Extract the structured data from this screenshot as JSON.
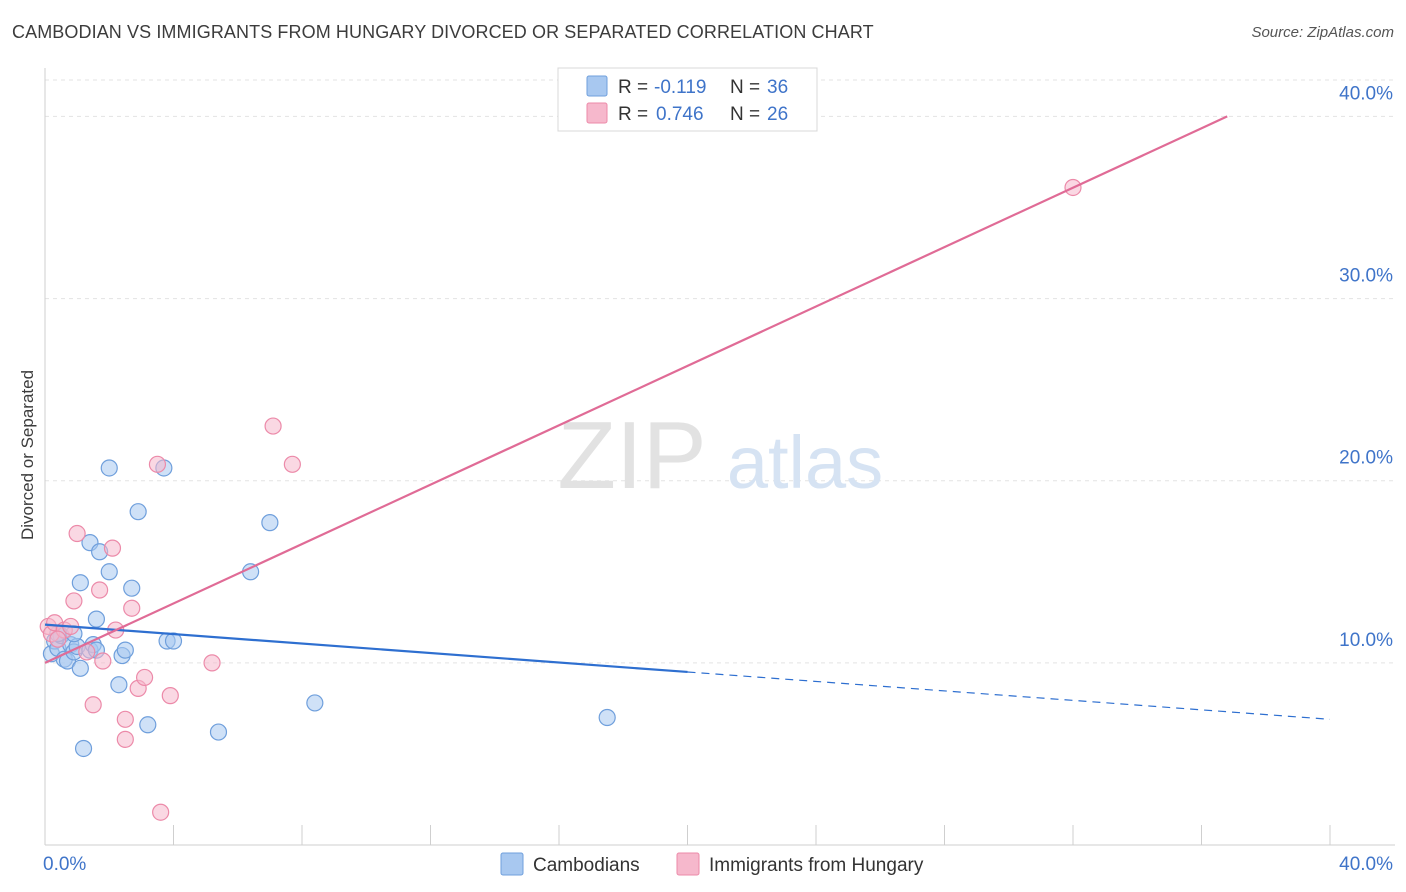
{
  "chart_data": {
    "type": "scatter",
    "title": "CAMBODIAN VS IMMIGRANTS FROM HUNGARY DIVORCED OR SEPARATED CORRELATION CHART",
    "source": "Source: ZipAtlas.com",
    "ylabel": "Divorced or Separated",
    "xlabel": "",
    "xlim": [
      0,
      40
    ],
    "ylim": [
      0,
      42
    ],
    "x_tick_labels": [
      "0.0%",
      "40.0%"
    ],
    "y_ticks": [
      10,
      20,
      30,
      40
    ],
    "y_tick_labels": [
      "10.0%",
      "20.0%",
      "30.0%",
      "40.0%"
    ],
    "watermark": {
      "zip": "ZIP",
      "atlas": "atlas"
    },
    "legend_top": [
      {
        "r_label": "R =",
        "r_value": "-0.119",
        "n_label": "N =",
        "n_value": "36"
      },
      {
        "r_label": "R =",
        "r_value": "0.746",
        "n_label": "N =",
        "n_value": "26"
      }
    ],
    "legend_bottom": [
      "Cambodians",
      "Immigrants from Hungary"
    ],
    "colors": {
      "blue_fill": "#a8c8f0",
      "blue_stroke": "#6f9fdc",
      "blue_line": "#2e6fd0",
      "pink_fill": "#f6b8cc",
      "pink_stroke": "#ec8aa9",
      "pink_line": "#e06b96",
      "tick_label": "#3f74c9",
      "grid": "#e3e3e3"
    },
    "series": [
      {
        "name": "Cambodians",
        "points": [
          [
            0.2,
            10.5
          ],
          [
            0.3,
            11.2
          ],
          [
            0.4,
            10.8
          ],
          [
            0.5,
            11.5
          ],
          [
            0.6,
            10.2
          ],
          [
            0.7,
            10.1
          ],
          [
            0.8,
            11.0
          ],
          [
            0.9,
            10.6
          ],
          [
            1.0,
            10.9
          ],
          [
            1.1,
            9.7
          ],
          [
            1.1,
            14.4
          ],
          [
            1.2,
            5.3
          ],
          [
            1.4,
            10.7
          ],
          [
            1.4,
            16.6
          ],
          [
            1.5,
            11.0
          ],
          [
            1.6,
            12.4
          ],
          [
            1.6,
            10.7
          ],
          [
            1.7,
            16.1
          ],
          [
            2.0,
            15.0
          ],
          [
            2.0,
            20.7
          ],
          [
            2.3,
            8.8
          ],
          [
            2.4,
            10.4
          ],
          [
            2.5,
            10.7
          ],
          [
            2.7,
            14.1
          ],
          [
            2.9,
            18.3
          ],
          [
            3.2,
            6.6
          ],
          [
            3.7,
            20.7
          ],
          [
            3.8,
            11.2
          ],
          [
            4.0,
            11.2
          ],
          [
            5.4,
            6.2
          ],
          [
            6.4,
            15.0
          ],
          [
            7.0,
            17.7
          ],
          [
            8.4,
            7.8
          ],
          [
            17.5,
            7.0
          ],
          [
            0.4,
            11.6
          ],
          [
            0.9,
            11.6
          ]
        ],
        "trend": {
          "x": [
            0,
            20
          ],
          "y": [
            12.1,
            9.5
          ],
          "dash_x": [
            20,
            40
          ],
          "dash_y": [
            9.5,
            6.9
          ]
        }
      },
      {
        "name": "Immigrants from Hungary",
        "points": [
          [
            0.1,
            12.0
          ],
          [
            0.2,
            11.6
          ],
          [
            0.3,
            12.2
          ],
          [
            0.6,
            11.8
          ],
          [
            0.8,
            12.0
          ],
          [
            0.9,
            13.4
          ],
          [
            1.0,
            17.1
          ],
          [
            1.3,
            10.6
          ],
          [
            1.5,
            7.7
          ],
          [
            1.7,
            14.0
          ],
          [
            1.8,
            10.1
          ],
          [
            2.1,
            16.3
          ],
          [
            2.2,
            11.8
          ],
          [
            2.5,
            5.8
          ],
          [
            2.5,
            6.9
          ],
          [
            2.7,
            13.0
          ],
          [
            2.9,
            8.6
          ],
          [
            3.1,
            9.2
          ],
          [
            3.5,
            20.9
          ],
          [
            3.6,
            1.8
          ],
          [
            3.9,
            8.2
          ],
          [
            5.2,
            10.0
          ],
          [
            7.1,
            23.0
          ],
          [
            7.7,
            20.9
          ],
          [
            32.0,
            36.1
          ],
          [
            0.4,
            11.3
          ]
        ],
        "trend": {
          "x": [
            0,
            36.8
          ],
          "y": [
            10.0,
            40.0
          ]
        }
      }
    ]
  }
}
